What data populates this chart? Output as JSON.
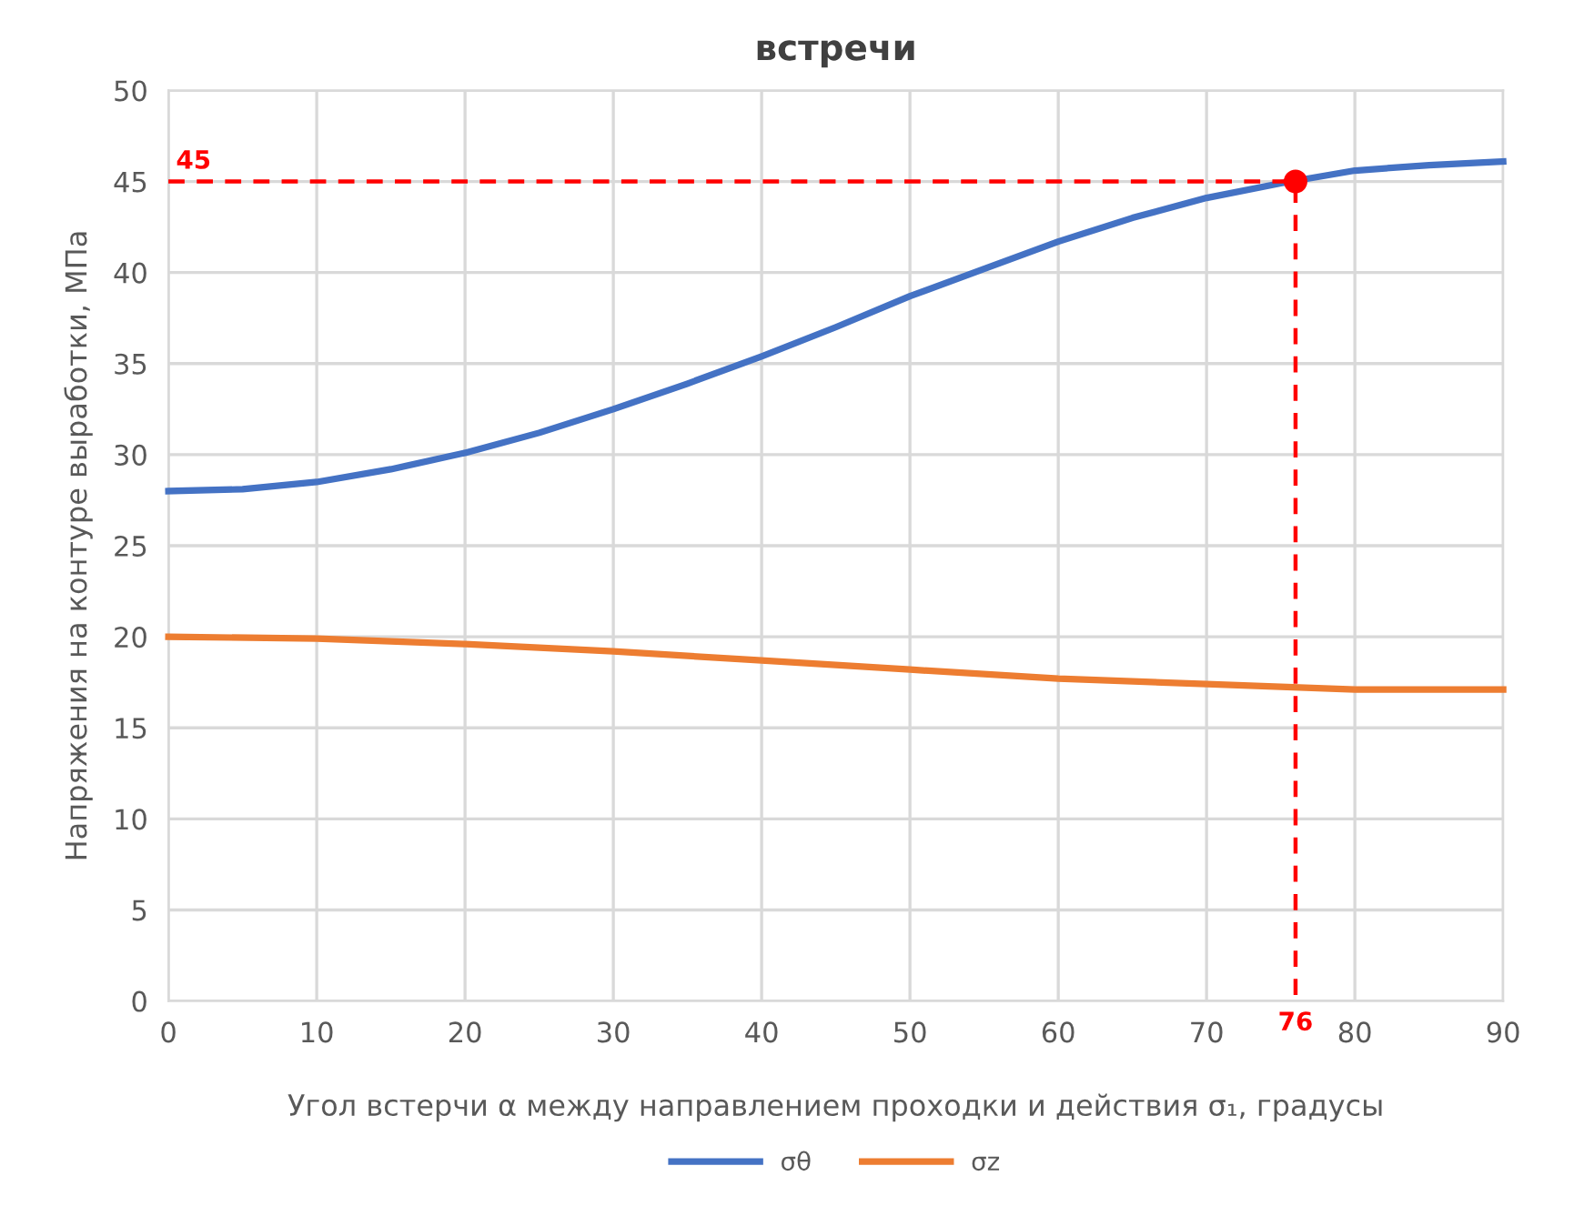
{
  "chart_data": {
    "type": "line",
    "title": "встречи",
    "xlabel": "Угол встерчи α между направлением проходки и действия σ₁, градусы",
    "ylabel": "Напряжения на контуре выработки, МПа",
    "xlim": [
      0,
      90
    ],
    "xticks": [
      0,
      10,
      20,
      30,
      40,
      50,
      60,
      70,
      80,
      90
    ],
    "ylim": [
      0,
      50
    ],
    "yticks": [
      0,
      5,
      10,
      15,
      20,
      25,
      30,
      35,
      40,
      45,
      50
    ],
    "grid": true,
    "legend": "bottom",
    "marker": "none",
    "series": [
      {
        "name": "σθ",
        "color": "#4472c4",
        "x": [
          0,
          5,
          10,
          15,
          20,
          25,
          30,
          35,
          40,
          45,
          50,
          55,
          60,
          65,
          70,
          75,
          80,
          85,
          90
        ],
        "values": [
          28.0,
          28.1,
          28.5,
          29.2,
          30.1,
          31.2,
          32.5,
          33.9,
          35.4,
          37.0,
          38.7,
          40.2,
          41.7,
          43.0,
          44.1,
          44.9,
          45.6,
          45.9,
          46.1
        ]
      },
      {
        "name": "σz",
        "color": "#ed7d31",
        "x": [
          0,
          10,
          20,
          30,
          40,
          50,
          60,
          70,
          80,
          90
        ],
        "values": [
          20.0,
          19.9,
          19.6,
          19.2,
          18.7,
          18.2,
          17.7,
          17.4,
          17.1,
          17.1
        ]
      },
      {
        "type": "line",
        "color": "#ff0000",
        "line_style": "dashed",
        "x": [
          0,
          76,
          76
        ],
        "values": [
          45,
          45,
          0
        ]
      },
      {
        "type": "scatter",
        "color": "#ff0000",
        "marker": "circle",
        "x": [
          76
        ],
        "values": [
          45
        ]
      }
    ],
    "annotations": [
      {
        "text": "45",
        "x": 0,
        "y": 45
      },
      {
        "text": "76",
        "x": 76,
        "y": 0
      }
    ]
  }
}
